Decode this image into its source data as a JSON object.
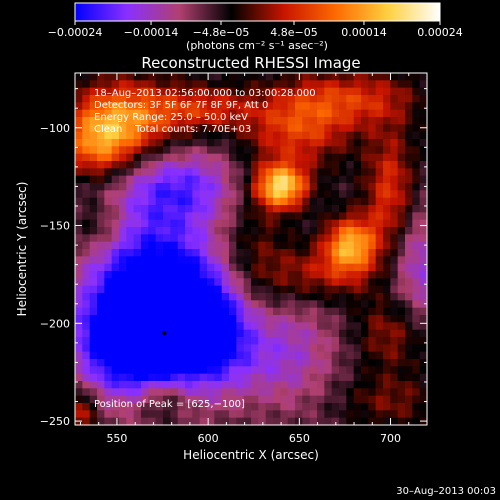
{
  "chart_data": {
    "type": "heatmap",
    "title": "Reconstructed RHESSI Image",
    "xlabel": "Heliocentric X (arcsec)",
    "ylabel": "Heliocentric Y (arcsec)",
    "xlim": [
      527,
      720
    ],
    "ylim": [
      -252,
      -72
    ],
    "x_ticks": [
      550,
      600,
      650,
      700
    ],
    "y_ticks": [
      -100,
      -150,
      -200,
      -250
    ],
    "x_tick_labels": [
      "550",
      "600",
      "650",
      "700"
    ],
    "y_tick_labels": [
      "−100",
      "−150",
      "−200",
      "−250"
    ],
    "grid": false,
    "colorbar": {
      "range": [
        -0.00024,
        0.00024
      ],
      "ticks": [
        -0.00024,
        -0.00014,
        -4.8e-05,
        4.8e-05,
        0.00014,
        0.00024
      ],
      "tick_labels": [
        "−0.00024",
        "−0.00014",
        "−4.8e−05",
        "4.8e−05",
        "0.00014",
        "0.00024"
      ],
      "unit_label": "(photons cm⁻² s⁻¹ asec⁻²)",
      "colors": [
        "#0000ff",
        "#8a30ff",
        "#b04070",
        "#000000",
        "#c81400",
        "#ff6a00",
        "#ffd040",
        "#ffffff"
      ]
    },
    "annotations": {
      "time_range": "18–Aug–2013 02:56:00.000 to 03:00:28.000",
      "detectors": "Detectors: 3F 5F 6F 7F 8F 9F, Att 0",
      "energy": "Energy Range: 25.0 – 50.0 keV",
      "method": "Clean    Total counts: 7.70E+03",
      "peak": "Position of Peak = [625,−100]"
    },
    "peak": [
      625,
      -100
    ],
    "features": [
      {
        "x": 555,
        "y": -95,
        "sx": 22,
        "sy": 14,
        "v": 0.00017
      },
      {
        "x": 540,
        "y": -110,
        "sx": 14,
        "sy": 12,
        "v": 0.00013
      },
      {
        "x": 600,
        "y": -90,
        "sx": 18,
        "sy": 8,
        "v": 9e-05
      },
      {
        "x": 640,
        "y": -130,
        "sx": 10,
        "sy": 8,
        "v": 0.00024
      },
      {
        "x": 650,
        "y": -100,
        "sx": 20,
        "sy": 14,
        "v": 0.00012
      },
      {
        "x": 680,
        "y": -85,
        "sx": 25,
        "sy": 10,
        "v": 0.0001
      },
      {
        "x": 678,
        "y": -160,
        "sx": 10,
        "sy": 10,
        "v": 0.0002
      },
      {
        "x": 700,
        "y": -135,
        "sx": 10,
        "sy": 24,
        "v": 0.00012
      },
      {
        "x": 660,
        "y": -175,
        "sx": 20,
        "sy": 10,
        "v": 8e-05
      },
      {
        "x": 625,
        "y": -180,
        "sx": 14,
        "sy": 40,
        "v": 7e-05
      },
      {
        "x": 700,
        "y": -205,
        "sx": 14,
        "sy": 14,
        "v": 8e-05
      },
      {
        "x": 700,
        "y": -240,
        "sx": 20,
        "sy": 10,
        "v": 6e-05
      },
      {
        "x": 530,
        "y": -245,
        "sx": 6,
        "sy": 8,
        "v": 0.00011
      },
      {
        "x": 575,
        "y": -238,
        "sx": 10,
        "sy": 8,
        "v": 8e-05
      },
      {
        "x": 540,
        "y": -150,
        "sx": 10,
        "sy": 10,
        "v": 6e-05
      },
      {
        "x": 570,
        "y": -185,
        "sx": 25,
        "sy": 28,
        "v": -0.00023
      },
      {
        "x": 560,
        "y": -210,
        "sx": 22,
        "sy": 18,
        "v": -0.0002
      },
      {
        "x": 600,
        "y": -200,
        "sx": 18,
        "sy": 18,
        "v": -0.00014
      },
      {
        "x": 585,
        "y": -130,
        "sx": 25,
        "sy": 14,
        "v": -0.00012
      },
      {
        "x": 630,
        "y": -215,
        "sx": 25,
        "sy": 20,
        "v": -0.00012
      },
      {
        "x": 715,
        "y": -170,
        "sx": 12,
        "sy": 22,
        "v": -0.0001
      }
    ]
  },
  "footer": {
    "timestamp": "30–Aug–2013 00:03"
  }
}
